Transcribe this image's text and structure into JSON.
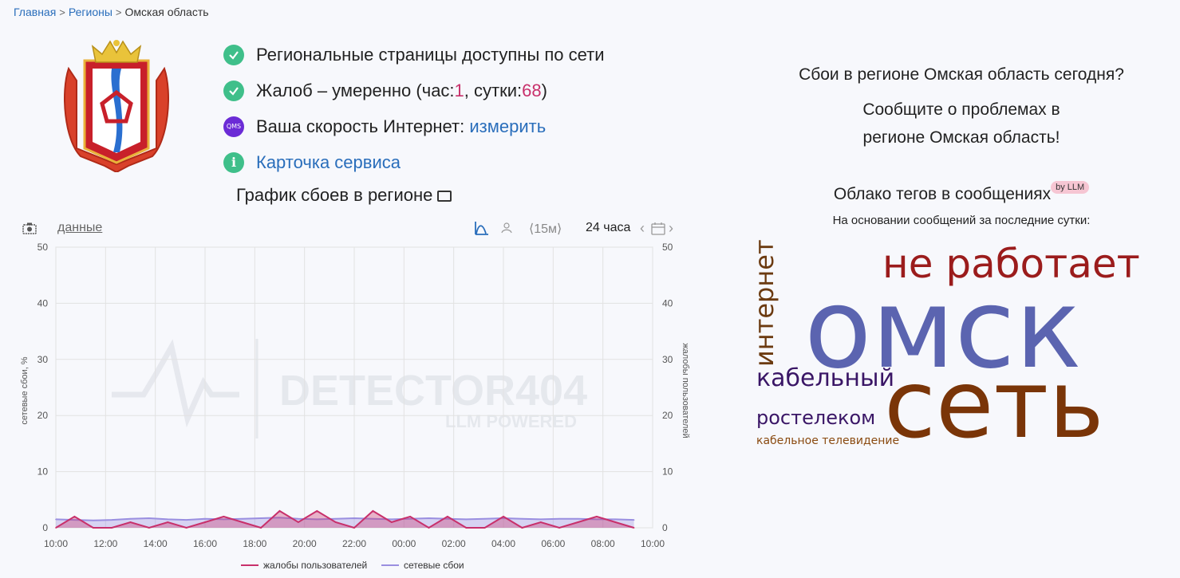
{
  "breadcrumb": {
    "home": "Главная",
    "regions": "Регионы",
    "current": "Омская область"
  },
  "status": {
    "network": "Региональные страницы доступны по сети",
    "complaints_prefix": "Жалоб – умеренно (час: ",
    "complaints_hour": "1",
    "complaints_mid": ", сутки: ",
    "complaints_day": "68",
    "complaints_suffix": ")",
    "speed_prefix": "Ваша скорость Интернет: ",
    "speed_link": "измерить",
    "qms": "QMS",
    "service_card": "Карточка сервиса"
  },
  "chart_title": "График сбоев в регионе",
  "toolbar": {
    "data_link": "данные",
    "interval": "⟨15м⟩",
    "period": "24 часа"
  },
  "right": {
    "question": "Сбои в регионе Омская область сегодня?",
    "report_line1": "Сообщите о проблемах в",
    "report_line2": "регионе Омская область!",
    "cloud_title": "Облако тегов в сообщениях",
    "llm_badge": "by LLM",
    "cloud_sub": "На основании сообщений за последние сутки:"
  },
  "tags": [
    {
      "text": "не работает",
      "color": "#9b1c1c"
    },
    {
      "text": "омск",
      "color": "#5b64b0"
    },
    {
      "text": "интернет",
      "color": "#6b3a10"
    },
    {
      "text": "кабельный",
      "color": "#3a1666"
    },
    {
      "text": "сеть",
      "color": "#7a3508"
    },
    {
      "text": "ростелеком",
      "color": "#3a1666"
    },
    {
      "text": "кабельное телевидение",
      "color": "#8a4a10"
    }
  ],
  "colors": {
    "complaints": "#c8306b",
    "outages": "#9a8fe0",
    "accent_green": "#3fbf8a"
  },
  "chart_data": {
    "type": "line",
    "x": [
      "10:00",
      "10:45",
      "11:30",
      "12:15",
      "13:00",
      "13:45",
      "14:30",
      "15:15",
      "16:00",
      "16:45",
      "17:30",
      "18:15",
      "19:00",
      "19:45",
      "20:30",
      "21:15",
      "22:00",
      "22:45",
      "23:30",
      "00:15",
      "01:00",
      "01:45",
      "02:30",
      "03:15",
      "04:00",
      "04:45",
      "05:30",
      "06:15",
      "07:00",
      "07:45",
      "08:30",
      "09:15"
    ],
    "xticks": [
      "10:00",
      "12:00",
      "14:00",
      "16:00",
      "18:00",
      "20:00",
      "22:00",
      "00:00",
      "02:00",
      "04:00",
      "06:00",
      "08:00",
      "10:00"
    ],
    "yticks": [
      0,
      10,
      20,
      30,
      40,
      50
    ],
    "ylabel": "сетевые сбои, %",
    "ylabel_right": "жалобы пользователей",
    "ylim": [
      0,
      50
    ],
    "series": [
      {
        "name": "жалобы пользователей",
        "axis": "right",
        "values": [
          0,
          2,
          0,
          0,
          1,
          0,
          1,
          0,
          1,
          2,
          1,
          0,
          3,
          1,
          3,
          1,
          0,
          3,
          1,
          2,
          0,
          2,
          0,
          0,
          2,
          0,
          1,
          0,
          1,
          2,
          1,
          0
        ]
      },
      {
        "name": "сетевые сбои",
        "axis": "left",
        "values": [
          1.5,
          1.4,
          1.3,
          1.4,
          1.6,
          1.7,
          1.5,
          1.4,
          1.6,
          1.5,
          1.6,
          1.7,
          1.8,
          1.6,
          1.5,
          1.6,
          1.7,
          1.6,
          1.5,
          1.6,
          1.7,
          1.6,
          1.5,
          1.6,
          1.7,
          1.6,
          1.5,
          1.6,
          1.6,
          1.5,
          1.5,
          1.4
        ]
      }
    ],
    "legend_position": "bottom",
    "grid": true,
    "watermark": "DETECTOR404",
    "watermark_sub": "LLM POWERED"
  }
}
